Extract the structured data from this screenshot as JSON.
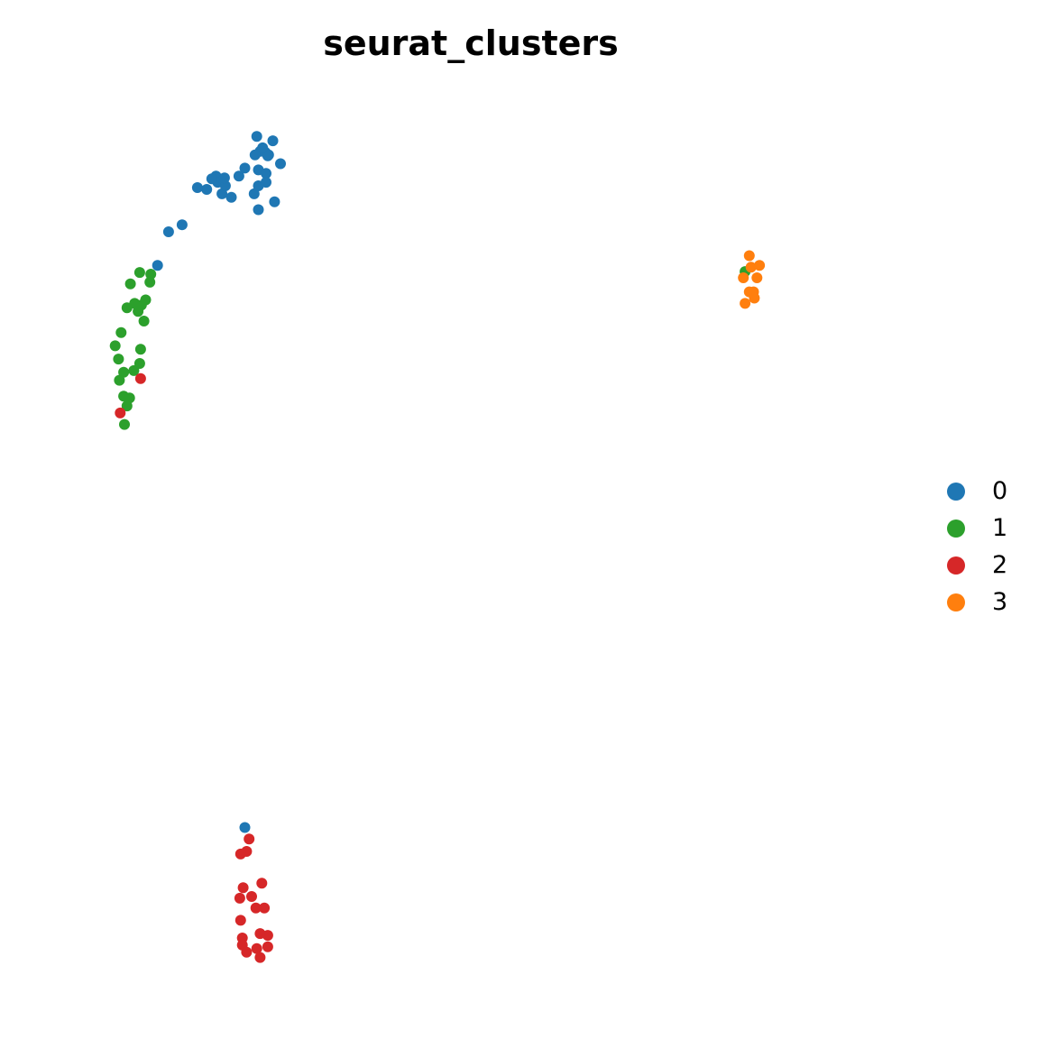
{
  "chart_data": {
    "type": "scatter",
    "title": "seurat_clusters",
    "xlabel": "",
    "ylabel": "",
    "axes_visible": false,
    "grid": false,
    "legend_placement": "right",
    "xlim": [
      0,
      100
    ],
    "ylim": [
      0,
      100
    ],
    "series": [
      {
        "name": "0",
        "color": "#1f77b4",
        "points": [
          [
            19.1,
            91.3
          ],
          [
            18.0,
            89.8
          ],
          [
            19.8,
            89.3
          ],
          [
            19.3,
            90.6
          ],
          [
            20.2,
            90.2
          ],
          [
            20.9,
            88.9
          ],
          [
            23.6,
            89.3
          ],
          [
            24.1,
            90.2
          ],
          [
            24.1,
            92.0
          ],
          [
            25.0,
            91.6
          ],
          [
            25.0,
            90.6
          ],
          [
            24.1,
            87.5
          ],
          [
            26.0,
            88.4
          ],
          [
            26.7,
            92.7
          ],
          [
            21.8,
            91.3
          ],
          [
            24.3,
            94.1
          ],
          [
            25.2,
            93.6
          ],
          [
            24.9,
            94.0
          ],
          [
            25.3,
            93.7
          ],
          [
            23.9,
            95.8
          ],
          [
            23.7,
            93.7
          ],
          [
            25.8,
            95.3
          ],
          [
            24.6,
            94.5
          ],
          [
            22.5,
            92.2
          ],
          [
            18.6,
            91.0
          ],
          [
            20.1,
            91.1
          ],
          [
            16.9,
            90.0
          ],
          [
            15.1,
            85.8
          ],
          [
            13.5,
            85.0
          ],
          [
            12.2,
            81.2
          ],
          [
            22.5,
            17.6
          ]
        ]
      },
      {
        "name": "1",
        "color": "#2ca02c",
        "points": [
          [
            11.3,
            79.3
          ],
          [
            11.4,
            80.2
          ],
          [
            10.1,
            80.4
          ],
          [
            10.8,
            77.3
          ],
          [
            9.0,
            79.1
          ],
          [
            9.5,
            76.9
          ],
          [
            8.6,
            76.4
          ],
          [
            10.3,
            76.7
          ],
          [
            9.9,
            76.0
          ],
          [
            10.6,
            74.9
          ],
          [
            7.9,
            73.6
          ],
          [
            10.2,
            71.7
          ],
          [
            7.2,
            72.1
          ],
          [
            10.1,
            70.1
          ],
          [
            7.6,
            70.6
          ],
          [
            9.4,
            69.3
          ],
          [
            8.2,
            69.1
          ],
          [
            7.7,
            68.2
          ],
          [
            8.2,
            66.4
          ],
          [
            8.9,
            66.2
          ],
          [
            8.6,
            65.3
          ],
          [
            8.3,
            63.2
          ],
          [
            81.5,
            80.5
          ]
        ]
      },
      {
        "name": "2",
        "color": "#d62728",
        "points": [
          [
            10.2,
            68.4
          ],
          [
            7.8,
            64.5
          ],
          [
            23.0,
            16.3
          ],
          [
            22.7,
            14.9
          ],
          [
            22.0,
            14.6
          ],
          [
            24.5,
            11.3
          ],
          [
            22.3,
            10.8
          ],
          [
            23.3,
            9.8
          ],
          [
            21.9,
            9.6
          ],
          [
            24.8,
            8.5
          ],
          [
            23.8,
            8.5
          ],
          [
            22.0,
            7.1
          ],
          [
            24.3,
            5.6
          ],
          [
            25.2,
            5.4
          ],
          [
            22.2,
            5.1
          ],
          [
            22.2,
            4.3
          ],
          [
            25.2,
            4.1
          ],
          [
            23.9,
            3.9
          ],
          [
            22.7,
            3.5
          ],
          [
            24.3,
            2.9
          ]
        ]
      },
      {
        "name": "3",
        "color": "#ff7f0e",
        "points": [
          [
            82.0,
            82.3
          ],
          [
            82.2,
            81.0
          ],
          [
            83.2,
            81.2
          ],
          [
            81.3,
            79.8
          ],
          [
            82.9,
            79.8
          ],
          [
            82.0,
            78.2
          ],
          [
            82.5,
            78.2
          ],
          [
            82.6,
            77.5
          ],
          [
            81.5,
            76.9
          ]
        ]
      }
    ]
  }
}
